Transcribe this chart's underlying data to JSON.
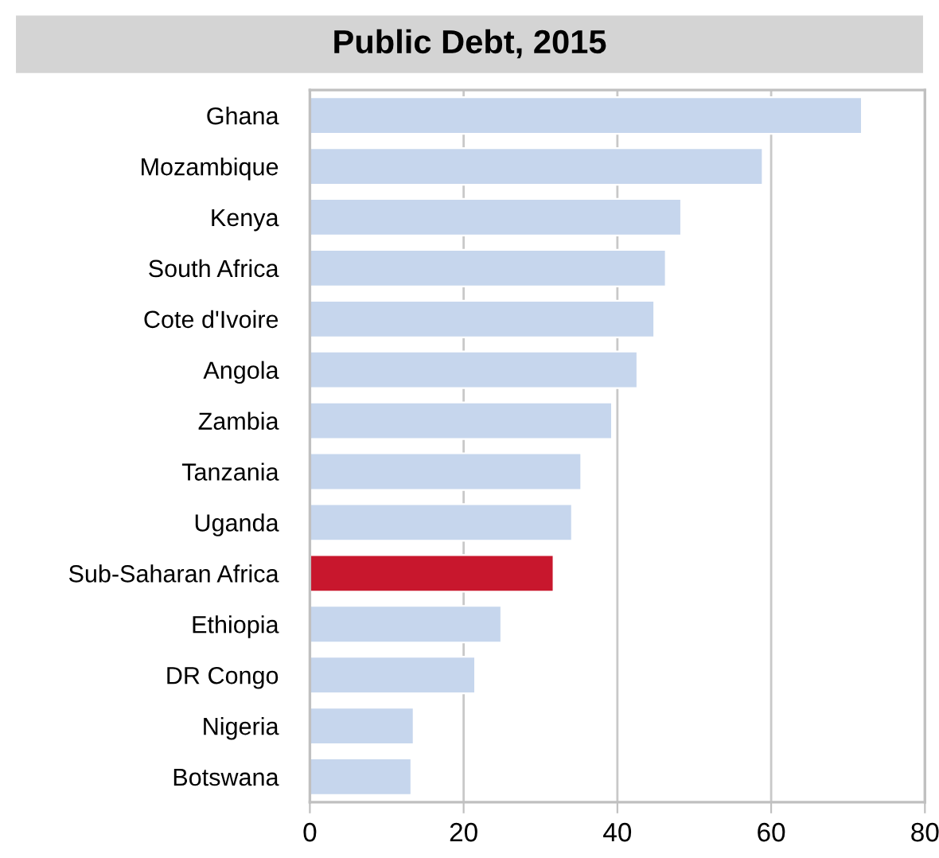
{
  "chart_data": {
    "type": "bar",
    "orientation": "horizontal",
    "title": "Public Debt, 2015",
    "categories": [
      "Ghana",
      "Mozambique",
      "Kenya",
      "South Africa",
      "Cote d'Ivoire",
      "Angola",
      "Zambia",
      "Tanzania",
      "Uganda",
      "Sub-Saharan Africa",
      "Ethiopia",
      "DR Congo",
      "Nigeria",
      "Botswana"
    ],
    "values": [
      71.8,
      58.9,
      48.3,
      46.3,
      44.8,
      42.6,
      39.3,
      35.3,
      34.1,
      31.7,
      24.9,
      21.5,
      13.5,
      13.2
    ],
    "colors": [
      "#c6d6ed",
      "#c6d6ed",
      "#c6d6ed",
      "#c6d6ed",
      "#c6d6ed",
      "#c6d6ed",
      "#c6d6ed",
      "#c6d6ed",
      "#c6d6ed",
      "#c8172d",
      "#c6d6ed",
      "#c6d6ed",
      "#c6d6ed",
      "#c6d6ed"
    ],
    "xlim": [
      0,
      80
    ],
    "xticks": [
      0,
      20,
      40,
      60,
      80
    ],
    "grid": "x"
  }
}
